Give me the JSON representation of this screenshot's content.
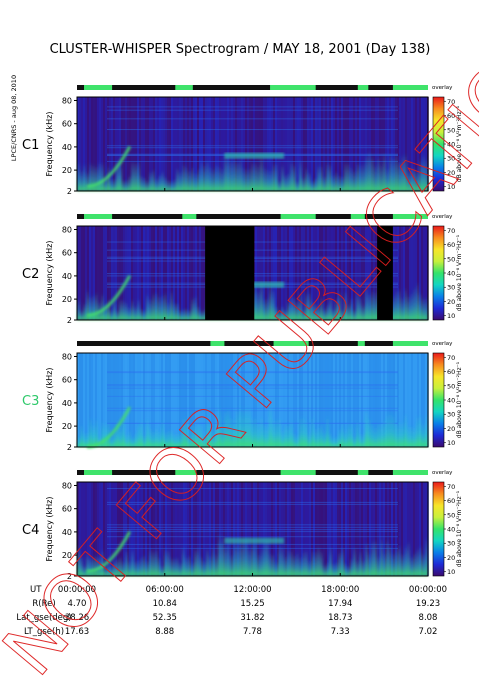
{
  "chart_data": {
    "type": "heatmap",
    "title": "CLUSTER-WHISPER Spectrogram / MAY 18, 2001 (Day 138)",
    "side_label": "LPCE/CNRS - aug 08, 2010",
    "watermark": "NOT FOR PUBLICATION",
    "ylabel": "Frequency (kHz)",
    "y_ticks": [
      "2",
      "20",
      "40",
      "60",
      "80"
    ],
    "ylim": [
      2,
      83
    ],
    "colorbar": {
      "label": "dB above 10⁻⁸ V²m⁻²Hz⁻¹",
      "ticks": [
        "10",
        "20",
        "30",
        "40",
        "50",
        "60",
        "70"
      ],
      "range": [
        7,
        73
      ],
      "corner_label": "overlay",
      "colors": [
        "#3b0a6e",
        "#1e2ad6",
        "#0a7fe8",
        "#13d6c2",
        "#34e36a",
        "#c8f03c",
        "#f7e52a",
        "#f78d1f",
        "#ea1a1a"
      ]
    },
    "x_axis": {
      "row_labels": [
        "UT",
        "R(Re)",
        "Lat_gse(deg)",
        "LT_gse(h)"
      ],
      "ut": [
        "00:00:00",
        "06:00:00",
        "12:00:00",
        "18:00:00",
        "00:00:00"
      ],
      "r_re": [
        "4.70",
        "10.84",
        "15.25",
        "17.94",
        "19.23"
      ],
      "lat_gse": [
        "38.26",
        "52.35",
        "31.82",
        "18.73",
        "8.08"
      ],
      "lt_gse": [
        "17.63",
        "8.88",
        "7.78",
        "7.33",
        "7.02"
      ]
    },
    "panels": [
      {
        "name": "C1",
        "label_color": "#000000",
        "background": "#311a8c",
        "status_green": [
          [
            0.02,
            0.1
          ],
          [
            0.28,
            0.33
          ],
          [
            0.55,
            0.68
          ],
          [
            0.8,
            0.83
          ],
          [
            0.9,
            1.0
          ]
        ],
        "data_gaps": []
      },
      {
        "name": "C2",
        "label_color": "#000000",
        "background": "#311a8c",
        "status_green": [
          [
            0.02,
            0.1
          ],
          [
            0.3,
            0.34
          ],
          [
            0.58,
            0.68
          ],
          [
            0.78,
            0.82
          ],
          [
            0.9,
            1.0
          ]
        ],
        "data_gaps": [
          [
            0.365,
            0.505
          ],
          [
            0.855,
            0.9
          ]
        ]
      },
      {
        "name": "C3",
        "label_color": "#2fc96b",
        "background": "#2e96f0",
        "status_green": [
          [
            0.38,
            0.42
          ],
          [
            0.56,
            0.66
          ],
          [
            0.8,
            0.82
          ],
          [
            0.9,
            1.0
          ]
        ],
        "data_gaps": []
      },
      {
        "name": "C4",
        "label_color": "#000000",
        "background": "#311a8c",
        "status_green": [
          [
            0.02,
            0.1
          ],
          [
            0.28,
            0.34
          ],
          [
            0.58,
            0.68
          ],
          [
            0.8,
            0.83
          ],
          [
            0.9,
            1.0
          ]
        ],
        "data_gaps": []
      }
    ]
  }
}
